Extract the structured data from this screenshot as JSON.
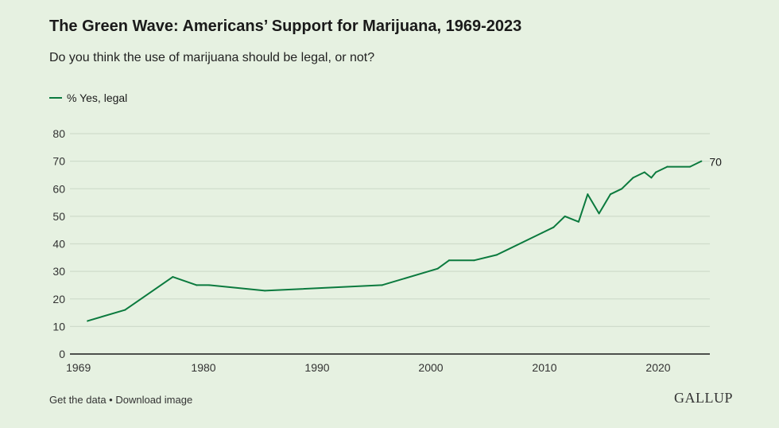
{
  "title": "The Green Wave: Americans’ Support for Marijuana, 1969-2023",
  "subtitle": "Do you think the use of marijuana should be legal, or not?",
  "footer": {
    "get_data": "Get the data",
    "separator": " • ",
    "download": "Download image"
  },
  "logo": "GALLUP",
  "chart_data": {
    "type": "line",
    "title": "The Green Wave: Americans’ Support for Marijuana, 1969-2023",
    "xlabel": "",
    "ylabel": "",
    "xlim": [
      1969,
      2024
    ],
    "ylim": [
      0,
      80
    ],
    "x_ticks": [
      1969,
      1980,
      1990,
      2000,
      2010,
      2020
    ],
    "y_ticks": [
      0,
      10,
      20,
      30,
      40,
      50,
      60,
      70,
      80
    ],
    "grid": true,
    "legend_position": "top-left",
    "color": "#0b7a3e",
    "series": [
      {
        "name": "% Yes, legal",
        "x": [
          1969.8,
          1973.1,
          1977.3,
          1979.4,
          1980.5,
          1985.4,
          1995.7,
          2000.6,
          2001.6,
          2003.8,
          2005.8,
          2009.8,
          2010.8,
          2011.8,
          2013.0,
          2013.8,
          2014.8,
          2015.8,
          2016.8,
          2017.8,
          2018.8,
          2019.4,
          2019.8,
          2020.8,
          2022.8,
          2023.8
        ],
        "values": [
          12,
          16,
          28,
          25,
          25,
          23,
          25,
          31,
          34,
          34,
          36,
          44,
          46,
          50,
          48,
          58,
          51,
          58,
          60,
          64,
          66,
          64,
          66,
          68,
          68,
          70
        ]
      }
    ],
    "end_label": "70"
  }
}
